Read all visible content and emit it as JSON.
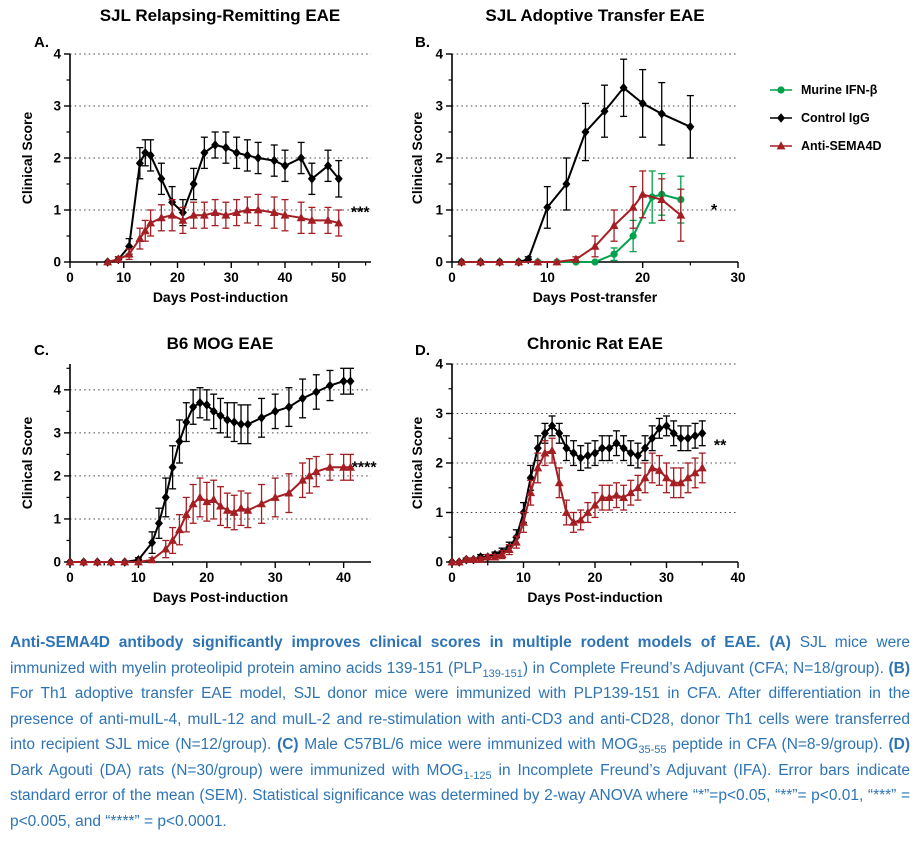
{
  "page": {
    "background": "#ffffff"
  },
  "legend": {
    "items": [
      {
        "label": "Murine IFN-β",
        "color": "#00a14b",
        "marker": "circle"
      },
      {
        "label": "Control IgG",
        "color": "#000000",
        "marker": "diamond"
      },
      {
        "label": "Anti-SEMA4D",
        "color": "#a41e23",
        "marker": "triangle"
      }
    ]
  },
  "chart_data": [
    {
      "type": "line",
      "letter": "A.",
      "title": "SJL Relapsing-Remitting EAE",
      "xlabel": "Days Post-induction",
      "ylabel": "Clinical Score",
      "xlim": [
        0,
        56
      ],
      "ylim": [
        0,
        4
      ],
      "xticks": [
        0,
        10,
        20,
        30,
        40,
        50
      ],
      "yticks": [
        0,
        1,
        2,
        3,
        4
      ],
      "xminor": 5,
      "yminor": 0.5,
      "grid": [
        1,
        2,
        3,
        4
      ],
      "sig": {
        "label": "***",
        "x": 54,
        "y": 0.95
      },
      "series": [
        {
          "name": "Control IgG",
          "color": "#000000",
          "marker": "diamond",
          "x": [
            7,
            9,
            11,
            13,
            14,
            15,
            17,
            19,
            21,
            23,
            25,
            27,
            29,
            31,
            33,
            35,
            38,
            40,
            43,
            45,
            48,
            50
          ],
          "y": [
            0,
            0.05,
            0.3,
            1.9,
            2.1,
            2.05,
            1.6,
            1.15,
            0.95,
            1.5,
            2.1,
            2.25,
            2.2,
            2.1,
            2.05,
            2.0,
            1.95,
            1.85,
            2.0,
            1.6,
            1.85,
            1.6
          ],
          "e": [
            0,
            0.05,
            0.15,
            0.3,
            0.25,
            0.3,
            0.3,
            0.3,
            0.25,
            0.3,
            0.3,
            0.25,
            0.3,
            0.3,
            0.3,
            0.3,
            0.3,
            0.3,
            0.3,
            0.3,
            0.3,
            0.35
          ]
        },
        {
          "name": "Anti-SEMA4D",
          "color": "#a41e23",
          "marker": "triangle",
          "x": [
            7,
            9,
            11,
            13,
            14,
            15,
            17,
            19,
            21,
            23,
            25,
            27,
            29,
            31,
            33,
            35,
            38,
            40,
            43,
            45,
            48,
            50
          ],
          "y": [
            0,
            0.05,
            0.15,
            0.45,
            0.6,
            0.75,
            0.85,
            0.9,
            0.8,
            0.9,
            0.9,
            0.95,
            0.9,
            0.95,
            1.0,
            1.0,
            0.95,
            0.9,
            0.85,
            0.8,
            0.8,
            0.75
          ],
          "e": [
            0,
            0.05,
            0.1,
            0.2,
            0.2,
            0.25,
            0.25,
            0.3,
            0.25,
            0.25,
            0.25,
            0.25,
            0.25,
            0.25,
            0.25,
            0.3,
            0.3,
            0.3,
            0.3,
            0.25,
            0.25,
            0.25
          ]
        }
      ]
    },
    {
      "type": "line",
      "letter": "B.",
      "title": "SJL  Adoptive Transfer EAE",
      "xlabel": "Days Post-transfer",
      "ylabel": "Clinical Score",
      "xlim": [
        0,
        30
      ],
      "ylim": [
        0,
        4
      ],
      "xticks": [
        0,
        10,
        20,
        30
      ],
      "yticks": [
        0,
        1,
        2,
        3,
        4
      ],
      "xminor": 5,
      "yminor": 0.5,
      "grid": [
        1,
        2,
        3,
        4
      ],
      "sig": {
        "label": "*",
        "x": 27.5,
        "y": 1.0
      },
      "series": [
        {
          "name": "Murine IFN-β",
          "color": "#00a14b",
          "marker": "circle",
          "x": [
            1,
            3,
            5,
            7,
            9,
            11,
            13,
            15,
            17,
            19,
            21,
            22,
            24
          ],
          "y": [
            0,
            0,
            0,
            0,
            0,
            0,
            0,
            0,
            0.15,
            0.5,
            1.25,
            1.3,
            1.2
          ],
          "e": [
            0,
            0,
            0,
            0,
            0,
            0,
            0,
            0,
            0.12,
            0.3,
            0.5,
            0.4,
            0.45
          ]
        },
        {
          "name": "Control IgG",
          "color": "#000000",
          "marker": "diamond",
          "x": [
            1,
            3,
            5,
            7,
            8,
            10,
            12,
            14,
            16,
            18,
            20,
            22,
            25
          ],
          "y": [
            0,
            0,
            0,
            0,
            0.05,
            1.05,
            1.5,
            2.5,
            2.9,
            3.35,
            3.05,
            2.85,
            2.6
          ],
          "e": [
            0,
            0,
            0,
            0,
            0.05,
            0.4,
            0.5,
            0.55,
            0.5,
            0.55,
            0.65,
            0.6,
            0.6
          ]
        },
        {
          "name": "Anti-SEMA4D",
          "color": "#a41e23",
          "marker": "triangle",
          "x": [
            1,
            3,
            5,
            7,
            9,
            11,
            13,
            15,
            17,
            19,
            20,
            22,
            24
          ],
          "y": [
            0,
            0,
            0,
            0,
            0,
            0,
            0.05,
            0.3,
            0.7,
            1.05,
            1.3,
            1.2,
            0.9
          ],
          "e": [
            0,
            0,
            0,
            0,
            0,
            0,
            0.05,
            0.2,
            0.3,
            0.4,
            0.45,
            0.4,
            0.5
          ]
        }
      ]
    },
    {
      "type": "line",
      "letter": "C.",
      "title": "B6 MOG EAE",
      "xlabel": "Days Post-induction",
      "ylabel": "Clinical Score",
      "xlim": [
        0,
        44
      ],
      "ylim": [
        0,
        4.6
      ],
      "xticks": [
        0,
        10,
        20,
        30,
        40
      ],
      "yticks": [
        0,
        1,
        2,
        3,
        4
      ],
      "xminor": 5,
      "yminor": 0.5,
      "grid": [
        1,
        2,
        3,
        4
      ],
      "sig": {
        "label": "****",
        "x": 43,
        "y": 2.2
      },
      "series": [
        {
          "name": "Control IgG",
          "color": "#000000",
          "marker": "diamond",
          "x": [
            0,
            2,
            4,
            6,
            8,
            10,
            12,
            13,
            14,
            15,
            16,
            17,
            18,
            19,
            20,
            21,
            22,
            23,
            24,
            25,
            26,
            28,
            30,
            32,
            34,
            36,
            38,
            40,
            41
          ],
          "y": [
            0,
            0,
            0,
            0,
            0,
            0.05,
            0.45,
            0.9,
            1.5,
            2.2,
            2.8,
            3.25,
            3.6,
            3.7,
            3.65,
            3.5,
            3.4,
            3.3,
            3.25,
            3.2,
            3.2,
            3.35,
            3.5,
            3.6,
            3.8,
            3.95,
            4.1,
            4.2,
            4.2
          ],
          "e": [
            0,
            0,
            0,
            0,
            0,
            0.05,
            0.25,
            0.35,
            0.45,
            0.5,
            0.5,
            0.45,
            0.4,
            0.35,
            0.35,
            0.4,
            0.4,
            0.4,
            0.45,
            0.45,
            0.45,
            0.45,
            0.4,
            0.45,
            0.45,
            0.4,
            0.35,
            0.3,
            0.3
          ]
        },
        {
          "name": "Anti-SEMA4D",
          "color": "#a41e23",
          "marker": "triangle",
          "x": [
            0,
            2,
            4,
            6,
            8,
            10,
            12,
            14,
            15,
            16,
            17,
            18,
            19,
            20,
            21,
            22,
            23,
            24,
            25,
            26,
            28,
            30,
            32,
            34,
            35,
            36,
            38,
            40,
            41
          ],
          "y": [
            0,
            0,
            0,
            0,
            0,
            0,
            0.05,
            0.3,
            0.5,
            0.75,
            1.1,
            1.35,
            1.5,
            1.4,
            1.45,
            1.3,
            1.2,
            1.15,
            1.25,
            1.2,
            1.35,
            1.5,
            1.6,
            1.9,
            2.0,
            2.1,
            2.2,
            2.2,
            2.2
          ],
          "e": [
            0,
            0,
            0,
            0,
            0,
            0,
            0.05,
            0.2,
            0.3,
            0.35,
            0.4,
            0.45,
            0.45,
            0.45,
            0.45,
            0.45,
            0.4,
            0.4,
            0.4,
            0.4,
            0.45,
            0.45,
            0.45,
            0.4,
            0.4,
            0.35,
            0.3,
            0.3,
            0.3
          ]
        }
      ]
    },
    {
      "type": "line",
      "letter": "D.",
      "title": "Chronic Rat EAE",
      "xlabel": "Days Post-induction",
      "ylabel": "Clinical Score",
      "xlim": [
        0,
        40
      ],
      "ylim": [
        0,
        4
      ],
      "xticks": [
        0,
        10,
        20,
        30,
        40
      ],
      "yticks": [
        0,
        1,
        2,
        3,
        4
      ],
      "xminor": 5,
      "yminor": 0.5,
      "grid": [
        1,
        2,
        3,
        4
      ],
      "sig": {
        "label": "**",
        "x": 37.5,
        "y": 2.35
      },
      "series": [
        {
          "name": "Control IgG",
          "color": "#000000",
          "marker": "diamond",
          "x": [
            0,
            1,
            2,
            3,
            4,
            5,
            6,
            7,
            8,
            9,
            10,
            11,
            12,
            13,
            14,
            15,
            16,
            17,
            18,
            19,
            20,
            21,
            22,
            23,
            24,
            25,
            26,
            27,
            28,
            29,
            30,
            31,
            32,
            33,
            34,
            35
          ],
          "y": [
            0,
            0,
            0.05,
            0.05,
            0.1,
            0.1,
            0.15,
            0.2,
            0.3,
            0.5,
            1.0,
            1.7,
            2.3,
            2.6,
            2.75,
            2.6,
            2.3,
            2.2,
            2.1,
            2.15,
            2.2,
            2.3,
            2.3,
            2.4,
            2.3,
            2.2,
            2.15,
            2.3,
            2.5,
            2.7,
            2.75,
            2.6,
            2.5,
            2.5,
            2.55,
            2.6
          ],
          "e": [
            0,
            0,
            0.03,
            0.03,
            0.05,
            0.05,
            0.05,
            0.08,
            0.1,
            0.15,
            0.2,
            0.25,
            0.25,
            0.2,
            0.2,
            0.2,
            0.25,
            0.25,
            0.25,
            0.25,
            0.25,
            0.25,
            0.25,
            0.25,
            0.25,
            0.25,
            0.25,
            0.25,
            0.25,
            0.2,
            0.2,
            0.25,
            0.25,
            0.25,
            0.25,
            0.25
          ]
        },
        {
          "name": "Anti-SEMA4D",
          "color": "#a41e23",
          "marker": "triangle",
          "x": [
            0,
            1,
            2,
            3,
            4,
            5,
            6,
            7,
            8,
            9,
            10,
            11,
            12,
            13,
            14,
            15,
            16,
            17,
            18,
            19,
            20,
            21,
            22,
            23,
            24,
            25,
            26,
            27,
            28,
            29,
            30,
            31,
            32,
            33,
            34,
            35
          ],
          "y": [
            0,
            0,
            0.05,
            0.05,
            0.05,
            0.1,
            0.1,
            0.15,
            0.25,
            0.4,
            0.8,
            1.4,
            1.9,
            2.2,
            2.25,
            1.6,
            1.0,
            0.8,
            0.85,
            1.0,
            1.15,
            1.3,
            1.3,
            1.35,
            1.3,
            1.4,
            1.5,
            1.7,
            1.9,
            1.85,
            1.7,
            1.6,
            1.6,
            1.7,
            1.8,
            1.9
          ],
          "e": [
            0,
            0,
            0.03,
            0.03,
            0.05,
            0.05,
            0.05,
            0.08,
            0.1,
            0.12,
            0.2,
            0.25,
            0.3,
            0.25,
            0.25,
            0.3,
            0.25,
            0.2,
            0.2,
            0.2,
            0.25,
            0.25,
            0.25,
            0.25,
            0.25,
            0.25,
            0.25,
            0.3,
            0.3,
            0.3,
            0.3,
            0.3,
            0.3,
            0.3,
            0.3,
            0.3
          ]
        }
      ]
    }
  ],
  "caption": {
    "segments": [
      {
        "t": "Anti-SEMA4D antibody significantly improves clinical scores in multiple rodent models of EAE. ",
        "b": true
      },
      {
        "t": "(A)",
        "b": true
      },
      {
        "t": " SJL mice were immunized with myelin proteolipid protein amino acids 139-151 (PLP"
      },
      {
        "t": "139-151",
        "sub": true
      },
      {
        "t": ") in Complete Freund’s Adjuvant (CFA; N=18/group). "
      },
      {
        "t": "(B)",
        "b": true
      },
      {
        "t": " For Th1 adoptive transfer EAE model, SJL donor mice were immunized with PLP139-151 in CFA.  After differentiation in the presence of anti-muIL-4, muIL-12 and muIL-2 and re-stimulation with anti-CD3 and anti-CD28, donor Th1 cells were transferred into recipient SJL mice (N=12/group). "
      },
      {
        "t": "(C)",
        "b": true
      },
      {
        "t": " Male C57BL/6 mice were immunized with MOG"
      },
      {
        "t": "35-55",
        "sub": true
      },
      {
        "t": " peptide in CFA (N=8-9/group). "
      },
      {
        "t": "(D)",
        "b": true
      },
      {
        "t": " Dark Agouti (DA) rats (N=30/group) were immunized with MOG"
      },
      {
        "t": "1-125",
        "sub": true
      },
      {
        "t": " in Incomplete Freund’s Adjuvant (IFA). Error bars indicate standard error of the mean (SEM). Statistical significance was determined by 2-way ANOVA where “*”=p<0.05, “**”= p<0.01, “***” = p<0.005, and “****” = p<0.0001."
      }
    ]
  }
}
